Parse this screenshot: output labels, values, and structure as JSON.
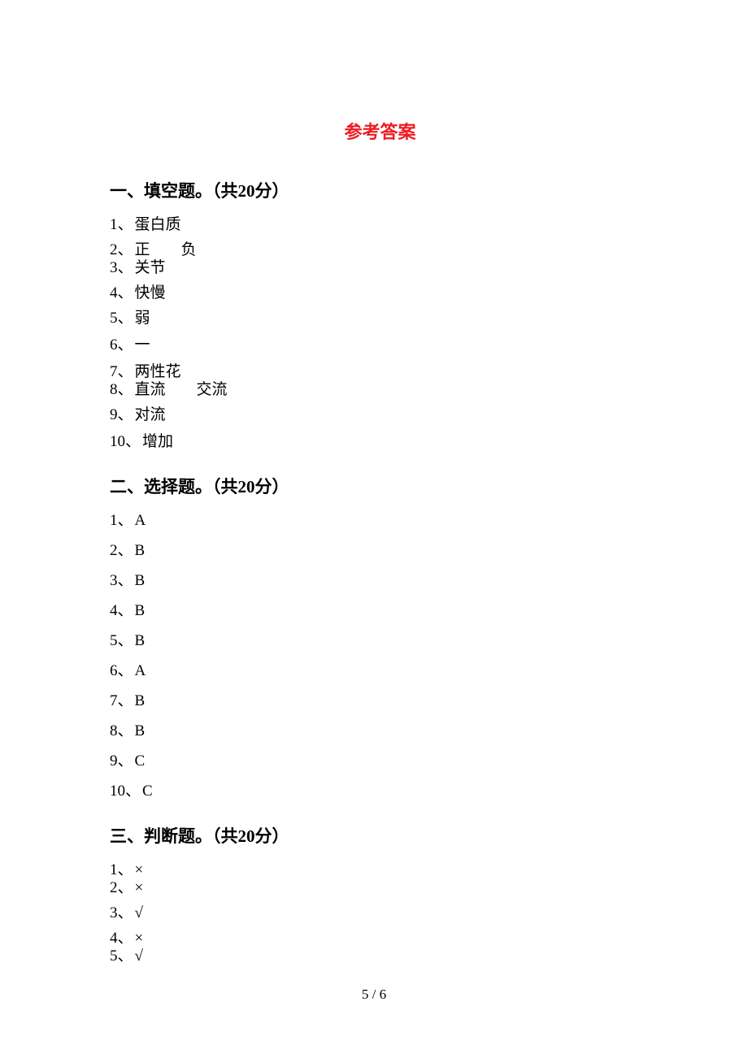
{
  "title": "参考答案",
  "sections": [
    {
      "header": "一、填空题。（共20分）",
      "items": [
        {
          "num": "1、",
          "value": "蛋白质",
          "gap": "gap-normal"
        },
        {
          "num": "2、",
          "value": "正　　负",
          "gap": "gap-tight"
        },
        {
          "num": "3、",
          "value": "关节",
          "gap": "gap-normal"
        },
        {
          "num": "4、",
          "value": "快慢",
          "gap": "gap-normal"
        },
        {
          "num": "5、",
          "value": "弱",
          "gap": "gap-loose"
        },
        {
          "num": "6、",
          "value": "一",
          "gap": "gap-loose"
        },
        {
          "num": "7、",
          "value": "两性花",
          "gap": "gap-tight"
        },
        {
          "num": "8、",
          "value": "直流　　交流",
          "gap": "gap-normal"
        },
        {
          "num": "9、",
          "value": "对流",
          "gap": "gap-loose"
        },
        {
          "num": "10、",
          "value": "增加",
          "gap": "gap-normal"
        }
      ]
    },
    {
      "header": "二、选择题。（共20分）",
      "items": [
        {
          "num": "1、",
          "value": "A",
          "gap": "gap-choice"
        },
        {
          "num": "2、",
          "value": "B",
          "gap": "gap-choice"
        },
        {
          "num": "3、",
          "value": "B",
          "gap": "gap-choice"
        },
        {
          "num": "4、",
          "value": "B",
          "gap": "gap-choice"
        },
        {
          "num": "5、",
          "value": "B",
          "gap": "gap-choice"
        },
        {
          "num": "6、",
          "value": "A",
          "gap": "gap-choice"
        },
        {
          "num": "7、",
          "value": "B",
          "gap": "gap-choice"
        },
        {
          "num": "8、",
          "value": "B",
          "gap": "gap-choice"
        },
        {
          "num": "9、",
          "value": "C",
          "gap": "gap-choice"
        },
        {
          "num": "10、",
          "value": "C",
          "gap": "gap-choice"
        }
      ]
    },
    {
      "header": "三、判断题。（共20分）",
      "items": [
        {
          "num": "1、",
          "value": "×",
          "gap": "gap-tight"
        },
        {
          "num": "2、",
          "value": "×",
          "gap": "gap-normal"
        },
        {
          "num": "3、",
          "value": "√",
          "gap": "gap-normal"
        },
        {
          "num": "4、",
          "value": "×",
          "gap": "gap-tight"
        },
        {
          "num": "5、",
          "value": "√",
          "gap": "gap-normal"
        }
      ]
    }
  ],
  "footer": "5 / 6",
  "colors": {
    "title": "#ed1c24",
    "text": "#000000",
    "background": "#ffffff"
  },
  "fonts": {
    "title_size": 22,
    "header_size": 21,
    "body_size": 19,
    "footer_size": 17
  }
}
